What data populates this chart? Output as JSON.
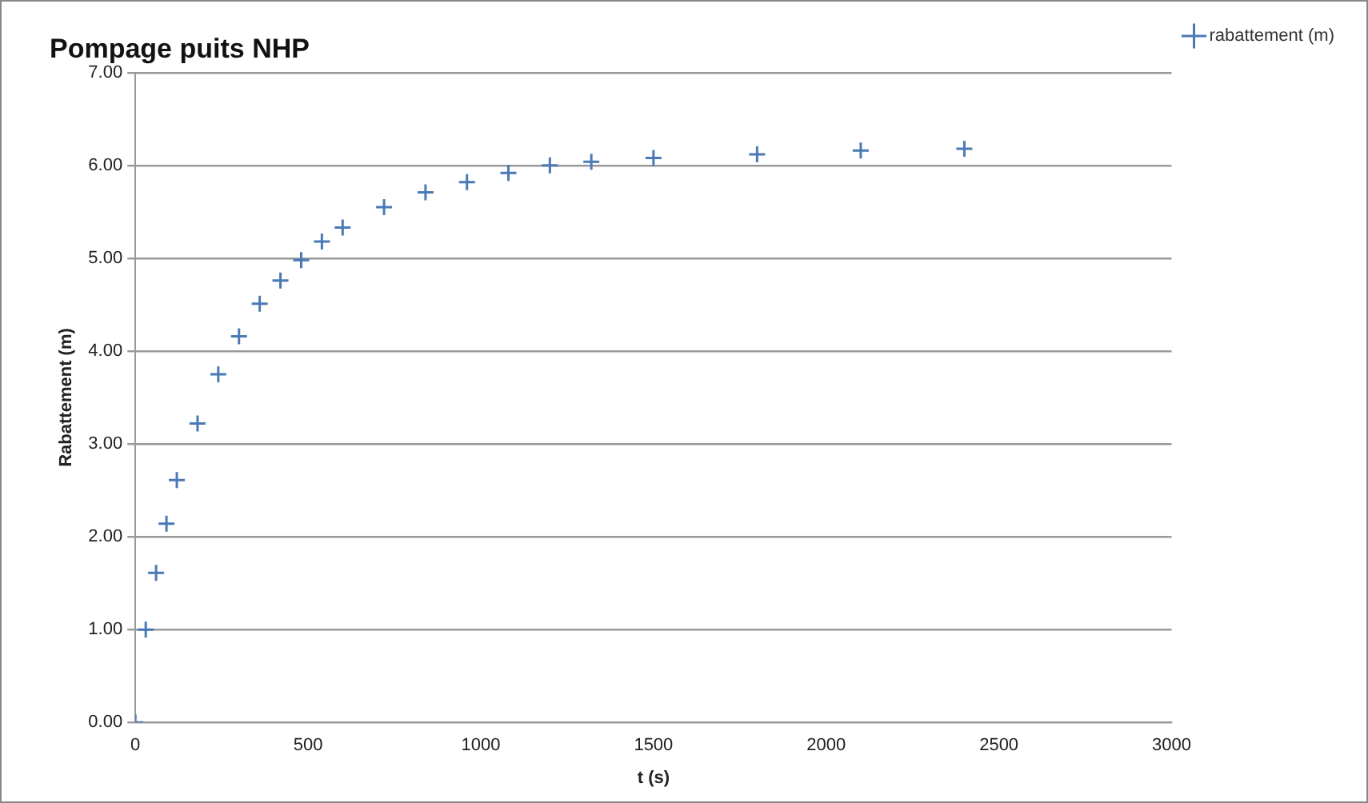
{
  "chart_data": {
    "type": "scatter",
    "title": "Pompage puits NHP",
    "xlabel": "t (s)",
    "ylabel": "Rabattement (m)",
    "series": [
      {
        "name": "rabattement (m)",
        "color": "#4a7ab5",
        "x": [
          0,
          30,
          60,
          90,
          120,
          180,
          240,
          300,
          360,
          420,
          480,
          540,
          600,
          720,
          840,
          960,
          1080,
          1200,
          1320,
          1500,
          1800,
          2100,
          2400
        ],
        "values": [
          0,
          1.0,
          1.61,
          2.14,
          2.61,
          3.22,
          3.75,
          4.16,
          4.51,
          4.76,
          4.98,
          5.18,
          5.33,
          5.55,
          5.71,
          5.82,
          5.92,
          6.0,
          6.04,
          6.08,
          6.12,
          6.16,
          6.18
        ]
      }
    ],
    "xlim": [
      0,
      3000
    ],
    "xticks": [
      0,
      500,
      1000,
      1500,
      2000,
      2500,
      3000
    ],
    "ylim": [
      0,
      7
    ],
    "yticks": [
      {
        "value": 0,
        "label": "0.00"
      },
      {
        "value": 1,
        "label": "1.00"
      },
      {
        "value": 2,
        "label": "2.00"
      },
      {
        "value": 3,
        "label": "3.00"
      },
      {
        "value": 4,
        "label": "4.00"
      },
      {
        "value": 5,
        "label": "5.00"
      },
      {
        "value": 6,
        "label": "6.00"
      },
      {
        "value": 7,
        "label": "7.00"
      }
    ],
    "grid": "y",
    "legend": "top right",
    "marker": "cross"
  }
}
